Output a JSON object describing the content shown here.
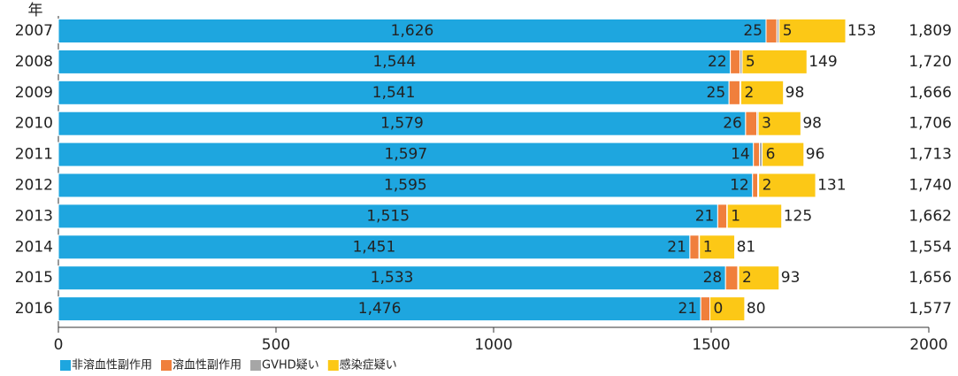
{
  "chart_data": {
    "type": "stacked_barh",
    "y_label": "年",
    "categories": [
      "2007",
      "2008",
      "2009",
      "2010",
      "2011",
      "2012",
      "2013",
      "2014",
      "2015",
      "2016"
    ],
    "series": [
      {
        "name": "非溶血性副作用",
        "color": "#1ea6df",
        "values": [
          1626,
          1544,
          1541,
          1579,
          1597,
          1595,
          1515,
          1451,
          1533,
          1476
        ],
        "value_labels": [
          "1,626",
          "1,544",
          "1,541",
          "1,579",
          "1,597",
          "1,595",
          "1,515",
          "1,451",
          "1,533",
          "1,476"
        ]
      },
      {
        "name": "溶血性副作用",
        "color": "#f07f3c",
        "values": [
          25,
          22,
          25,
          26,
          14,
          12,
          21,
          21,
          28,
          21
        ]
      },
      {
        "name": "GVHD疑い",
        "color": "#a6a6a6",
        "values": [
          5,
          5,
          2,
          3,
          6,
          2,
          1,
          1,
          2,
          0
        ]
      },
      {
        "name": "感染症疑い",
        "color": "#fcc816",
        "values": [
          153,
          149,
          98,
          98,
          96,
          131,
          125,
          81,
          93,
          80
        ]
      }
    ],
    "totals": {
      "color": "#e5262b",
      "values": [
        1809,
        1720,
        1666,
        1706,
        1713,
        1740,
        1662,
        1554,
        1656,
        1577
      ],
      "value_labels": [
        "1,809",
        "1,720",
        "1,666",
        "1,706",
        "1,713",
        "1,740",
        "1,662",
        "1,554",
        "1,656",
        "1,577"
      ]
    },
    "xlim": [
      0,
      2000
    ],
    "xticks": [
      0,
      500,
      1000,
      1500,
      2000
    ],
    "legend": "bottom-left"
  }
}
